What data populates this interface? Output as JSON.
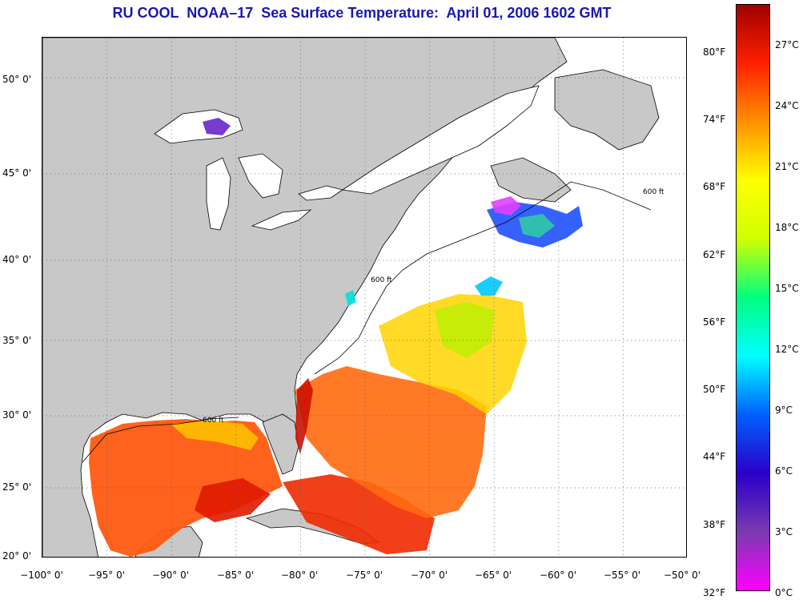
{
  "title": "RU COOL  NOAA–17  Sea Surface Temperature:  April 01, 2006 1602 GMT",
  "map": {
    "lon_range": [
      -100,
      -50
    ],
    "lat_range": [
      20,
      52
    ],
    "grid": "dotted",
    "land_color": "#c8c8c8",
    "cloud_color": "#ffffff",
    "x_tick_labels": [
      "−100° 0'",
      "−95° 0'",
      "−90° 0'",
      "−85° 0'",
      "−80° 0'",
      "−75° 0'",
      "−70° 0'",
      "−65° 0'",
      "−60° 0'",
      "−55° 0'",
      "−50° 0'"
    ],
    "y_tick_labels": [
      "50° 0'",
      "45° 0'",
      "40° 0'",
      "35° 0'",
      "30° 0'",
      "25° 0'",
      "20° 0'"
    ],
    "contour_label": "600 ft"
  },
  "colorbar": {
    "stops": [
      "#ff00ff",
      "#7a3ab0",
      "#2a00c8",
      "#0060ff",
      "#00ffff",
      "#00ff80",
      "#d0ff00",
      "#ffff00",
      "#ff9000",
      "#ff2000",
      "#a00000"
    ],
    "fahrenheit_labels": [
      "80°F",
      "74°F",
      "68°F",
      "62°F",
      "56°F",
      "50°F",
      "44°F",
      "38°F",
      "32°F"
    ],
    "celsius_labels": [
      "27°C",
      "24°C",
      "21°C",
      "18°C",
      "15°C",
      "12°C",
      "9°C",
      "6°C",
      "3°C",
      "0°C"
    ]
  }
}
